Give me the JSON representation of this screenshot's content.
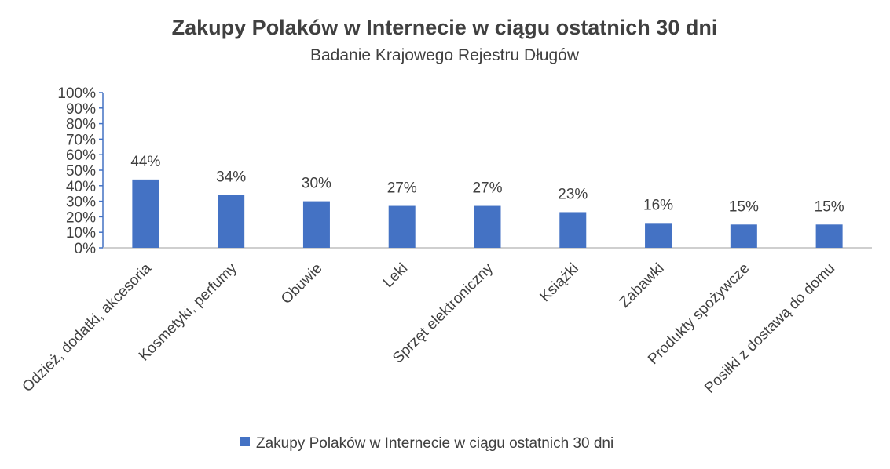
{
  "chart_data": {
    "type": "bar",
    "title": "Zakupy Polaków w Internecie w ciągu ostatnich 30 dni",
    "subtitle": "Badanie Krajowego Rejestru Długów",
    "categories": [
      "Odzież, dodatki, akcesoria",
      "Kosmetyki, perfumy",
      "Obuwie",
      "Leki",
      "Sprzęt elektroniczny",
      "Książki",
      "Zabawki",
      "Produkty spożywcze",
      "Posiłki z dostawą do domu"
    ],
    "series": [
      {
        "name": "Zakupy Polaków w Internecie w ciągu ostatnich 30 dni",
        "values": [
          44,
          34,
          30,
          27,
          27,
          23,
          16,
          15,
          15
        ],
        "labels": [
          "44%",
          "34%",
          "30%",
          "27%",
          "27%",
          "23%",
          "16%",
          "15%",
          "15%"
        ],
        "color": "#4472C4"
      }
    ],
    "ylim": [
      0,
      100
    ],
    "yticks": [
      "0%",
      "10%",
      "20%",
      "30%",
      "40%",
      "50%",
      "60%",
      "70%",
      "80%",
      "90%",
      "100%"
    ],
    "xlabel": "",
    "ylabel": "",
    "grid": false,
    "legend_position": "bottom",
    "axis_color": "#4472C4",
    "baseline_color": "#BFBFBF"
  }
}
